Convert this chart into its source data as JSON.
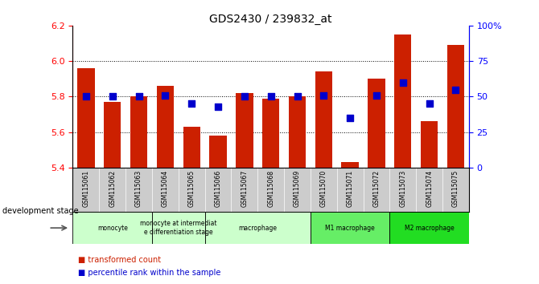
{
  "title": "GDS2430 / 239832_at",
  "samples": [
    "GSM115061",
    "GSM115062",
    "GSM115063",
    "GSM115064",
    "GSM115065",
    "GSM115066",
    "GSM115067",
    "GSM115068",
    "GSM115069",
    "GSM115070",
    "GSM115071",
    "GSM115072",
    "GSM115073",
    "GSM115074",
    "GSM115075"
  ],
  "bar_values": [
    5.96,
    5.77,
    5.8,
    5.86,
    5.63,
    5.58,
    5.82,
    5.79,
    5.8,
    5.94,
    5.43,
    5.9,
    6.15,
    5.66,
    6.09
  ],
  "blue_dot_values": [
    50,
    50,
    50,
    51,
    45,
    43,
    50,
    50,
    50,
    51,
    35,
    51,
    60,
    45,
    55
  ],
  "ylim": [
    5.4,
    6.2
  ],
  "yticks_left": [
    5.4,
    5.6,
    5.8,
    6.0,
    6.2
  ],
  "yticks_right": [
    0,
    25,
    50,
    75,
    100
  ],
  "bar_color": "#CC2000",
  "dot_color": "#0000CC",
  "stage_groups": [
    {
      "label": "monocyte",
      "start": 0,
      "end": 3,
      "color": "#ccffcc",
      "text": "monocyte"
    },
    {
      "label": "monocyte at intermediate\ndifferentiation stage",
      "start": 3,
      "end": 5,
      "color": "#ccffcc",
      "text": "monocyte at intermediat\ne differentiation stage"
    },
    {
      "label": "macrophage",
      "start": 5,
      "end": 9,
      "color": "#ccffcc",
      "text": "macrophage"
    },
    {
      "label": "M1 macrophage",
      "start": 9,
      "end": 12,
      "color": "#66ee66",
      "text": "M1 macrophage"
    },
    {
      "label": "M2 macrophage",
      "start": 12,
      "end": 15,
      "color": "#22dd22",
      "text": "M2 macrophage"
    }
  ],
  "xlabel_left": "development stage",
  "legend_items": [
    {
      "label": "transformed count",
      "color": "#CC2000"
    },
    {
      "label": "percentile rank within the sample",
      "color": "#0000CC"
    }
  ],
  "bar_width": 0.65,
  "dot_size": 35,
  "tick_label_bg": "#cccccc",
  "grid_yticks": [
    5.6,
    5.8,
    6.0
  ]
}
